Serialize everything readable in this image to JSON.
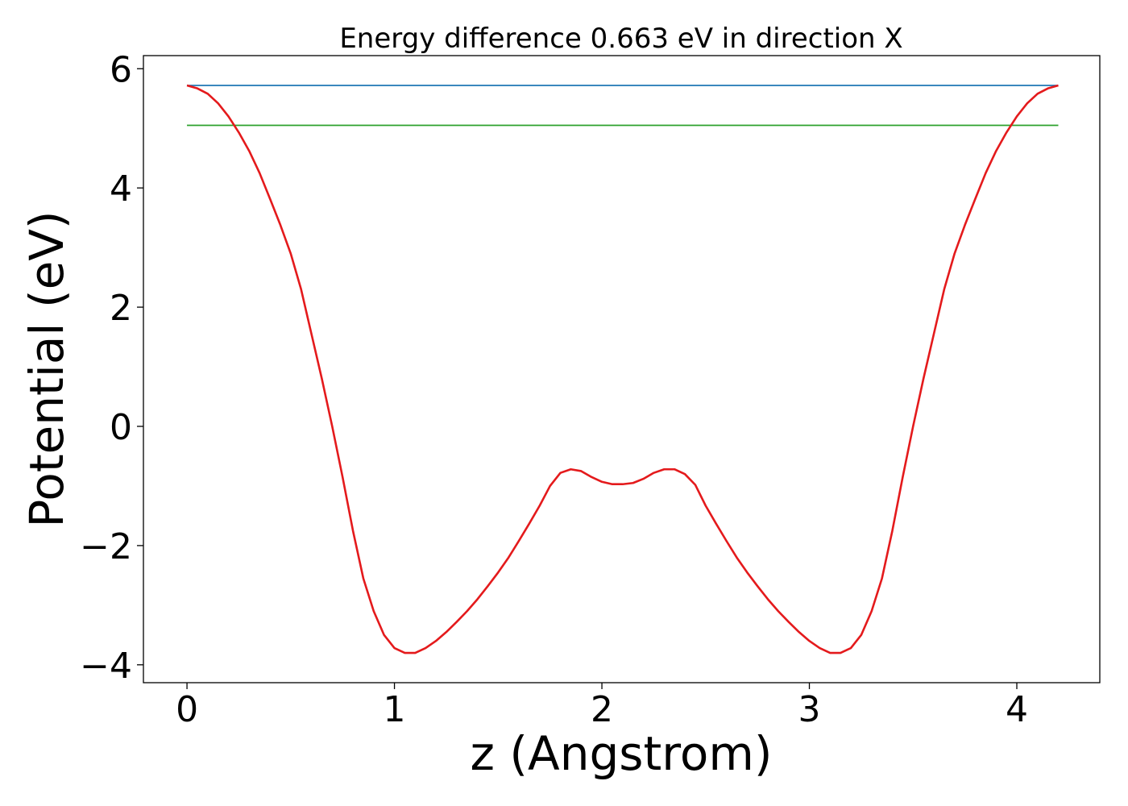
{
  "chart_data": {
    "type": "line",
    "title": "Energy difference 0.663 eV in direction X",
    "xlabel": "z (Angstrom)",
    "ylabel": "Potential (eV)",
    "xlim": [
      -0.21,
      4.4
    ],
    "ylim": [
      -4.3,
      6.22
    ],
    "xticks": [
      0,
      1,
      2,
      3,
      4
    ],
    "xtick_labels": [
      "0",
      "1",
      "2",
      "3",
      "4"
    ],
    "yticks": [
      -4,
      -2,
      0,
      2,
      4,
      6
    ],
    "ytick_labels": [
      "−4",
      "−2",
      "0",
      "2",
      "4",
      "6"
    ],
    "grid": false,
    "legend": "none",
    "series": [
      {
        "color": "#1f77b4",
        "x": [
          0,
          4.2
        ],
        "y": [
          5.72,
          5.72
        ]
      },
      {
        "color": "#2ca02c",
        "x": [
          0,
          4.2
        ],
        "y": [
          5.05,
          5.05
        ]
      },
      {
        "color": "#e41a1c",
        "x": [
          0.0,
          0.05,
          0.1,
          0.15,
          0.2,
          0.25,
          0.3,
          0.35,
          0.4,
          0.45,
          0.5,
          0.55,
          0.6,
          0.65,
          0.7,
          0.75,
          0.8,
          0.85,
          0.9,
          0.95,
          1.0,
          1.05,
          1.1,
          1.15,
          1.2,
          1.25,
          1.3,
          1.35,
          1.4,
          1.45,
          1.5,
          1.55,
          1.6,
          1.65,
          1.7,
          1.75,
          1.8,
          1.85,
          1.9,
          1.95,
          2.0,
          2.05,
          2.1,
          2.15,
          2.2,
          2.25,
          2.3,
          2.35,
          2.4,
          2.45,
          2.5,
          2.55,
          2.6,
          2.65,
          2.7,
          2.75,
          2.8,
          2.85,
          2.9,
          2.95,
          3.0,
          3.05,
          3.1,
          3.15,
          3.2,
          3.25,
          3.3,
          3.35,
          3.4,
          3.45,
          3.5,
          3.55,
          3.6,
          3.65,
          3.7,
          3.75,
          3.8,
          3.85,
          3.9,
          3.95,
          4.0,
          4.05,
          4.1,
          4.15,
          4.2
        ],
        "y": [
          5.72,
          5.67,
          5.58,
          5.42,
          5.2,
          4.93,
          4.62,
          4.25,
          3.82,
          3.38,
          2.9,
          2.3,
          1.55,
          0.8,
          0.0,
          -0.85,
          -1.75,
          -2.55,
          -3.1,
          -3.5,
          -3.72,
          -3.8,
          -3.8,
          -3.72,
          -3.6,
          -3.45,
          -3.28,
          -3.1,
          -2.9,
          -2.68,
          -2.45,
          -2.2,
          -1.92,
          -1.63,
          -1.33,
          -1.0,
          -0.78,
          -0.72,
          -0.75,
          -0.85,
          -0.93,
          -0.97,
          -0.97,
          -0.95,
          -0.88,
          -0.78,
          -0.72,
          -0.72,
          -0.8,
          -0.98,
          -1.33,
          -1.63,
          -1.92,
          -2.2,
          -2.45,
          -2.68,
          -2.9,
          -3.1,
          -3.28,
          -3.45,
          -3.6,
          -3.72,
          -3.8,
          -3.8,
          -3.72,
          -3.5,
          -3.1,
          -2.55,
          -1.75,
          -0.85,
          0.0,
          0.8,
          1.55,
          2.3,
          2.9,
          3.38,
          3.82,
          4.25,
          4.62,
          4.93,
          5.2,
          5.42,
          5.58,
          5.67,
          5.72
        ]
      }
    ]
  }
}
